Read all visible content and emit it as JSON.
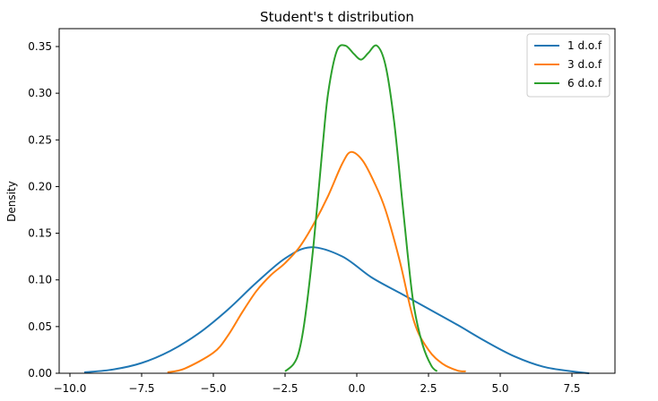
{
  "chart_data": {
    "type": "line",
    "title": "Student's t distribution",
    "xlabel": "",
    "ylabel": "Density",
    "xlim": [
      -10.85,
      8.5
    ],
    "ylim": [
      0.0,
      0.369
    ],
    "grid": false,
    "legend_position": "upper right",
    "x_ticks": [
      -10.0,
      -7.5,
      -5.0,
      -2.5,
      0.0,
      2.5,
      5.0,
      7.5
    ],
    "x_tick_labels": [
      "−10.0",
      "−7.5",
      "−5.0",
      "−2.5",
      "0.0",
      "2.5",
      "5.0",
      "7.5"
    ],
    "y_ticks": [
      0.0,
      0.05,
      0.1,
      0.15,
      0.2,
      0.25,
      0.3,
      0.35
    ],
    "y_tick_labels": [
      "0.00",
      "0.05",
      "0.10",
      "0.15",
      "0.20",
      "0.25",
      "0.30",
      "0.35"
    ],
    "series": [
      {
        "name": "1 d.o.f",
        "color": "#1f77b4",
        "x": [
          -9.5,
          -8.5,
          -7.5,
          -6.5,
          -5.5,
          -4.5,
          -3.5,
          -2.5,
          -1.6,
          -0.5,
          0.5,
          1.5,
          2.5,
          3.5,
          4.5,
          5.5,
          6.5,
          7.5,
          8.1
        ],
        "y": [
          0.001,
          0.004,
          0.011,
          0.024,
          0.043,
          0.068,
          0.097,
          0.123,
          0.135,
          0.125,
          0.103,
          0.086,
          0.069,
          0.052,
          0.034,
          0.018,
          0.007,
          0.002,
          0.0
        ]
      },
      {
        "name": "3 d.o.f",
        "color": "#ff7f0e",
        "x": [
          -6.6,
          -6.0,
          -5.0,
          -4.5,
          -4.0,
          -3.5,
          -3.0,
          -2.5,
          -2.0,
          -1.5,
          -1.0,
          -0.5,
          -0.2,
          0.2,
          0.6,
          1.0,
          1.5,
          2.0,
          2.5,
          3.0,
          3.5,
          3.8
        ],
        "y": [
          0.001,
          0.005,
          0.022,
          0.04,
          0.065,
          0.088,
          0.105,
          0.118,
          0.135,
          0.16,
          0.19,
          0.225,
          0.237,
          0.228,
          0.205,
          0.175,
          0.12,
          0.055,
          0.025,
          0.01,
          0.003,
          0.002
        ]
      },
      {
        "name": "6 d.o.f",
        "color": "#2ca02c",
        "x": [
          -2.5,
          -2.2,
          -2.0,
          -1.8,
          -1.5,
          -1.2,
          -1.0,
          -0.7,
          -0.4,
          -0.1,
          0.15,
          0.4,
          0.7,
          1.0,
          1.3,
          1.6,
          1.8,
          2.0,
          2.3,
          2.6,
          2.8
        ],
        "y": [
          0.002,
          0.01,
          0.025,
          0.06,
          0.14,
          0.24,
          0.3,
          0.345,
          0.351,
          0.342,
          0.336,
          0.343,
          0.351,
          0.33,
          0.27,
          0.18,
          0.12,
          0.07,
          0.03,
          0.008,
          0.002
        ]
      }
    ]
  }
}
